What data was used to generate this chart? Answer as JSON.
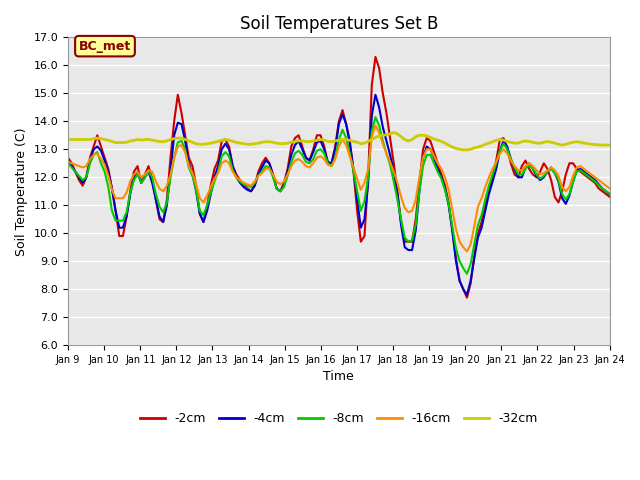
{
  "title": "Soil Temperatures Set B",
  "xlabel": "Time",
  "ylabel": "Soil Temperature (C)",
  "ylim": [
    6.0,
    17.0
  ],
  "yticks": [
    6.0,
    7.0,
    8.0,
    9.0,
    10.0,
    11.0,
    12.0,
    13.0,
    14.0,
    15.0,
    16.0,
    17.0
  ],
  "xtick_labels": [
    "Jan 9",
    "Jan 10",
    "Jan 11",
    "Jan 12",
    "Jan 13",
    "Jan 14",
    "Jan 15",
    "Jan 16",
    "Jan 17",
    "Jan 18",
    "Jan 19",
    "Jan 20",
    "Jan 21",
    "Jan 22",
    "Jan 23",
    "Jan 24"
  ],
  "annotation_text": "BC_met",
  "annotation_color": "#8B0000",
  "annotation_bg": "#FFFF99",
  "annotation_border": "#8B0000",
  "series": {
    "-2cm": {
      "color": "#CC0000",
      "linewidth": 1.5,
      "values": [
        12.7,
        12.5,
        12.2,
        11.9,
        11.7,
        12.0,
        12.7,
        13.1,
        13.5,
        13.1,
        12.7,
        12.3,
        11.6,
        10.8,
        9.9,
        9.9,
        10.6,
        11.5,
        12.2,
        12.4,
        11.8,
        12.1,
        12.4,
        11.9,
        11.2,
        10.5,
        10.4,
        11.2,
        12.7,
        14.0,
        14.95,
        14.3,
        13.5,
        12.7,
        12.4,
        11.7,
        10.7,
        10.4,
        11.0,
        11.7,
        12.3,
        12.6,
        13.3,
        13.35,
        13.1,
        12.4,
        12.1,
        11.9,
        11.7,
        11.6,
        11.5,
        11.7,
        12.2,
        12.5,
        12.7,
        12.5,
        12.1,
        11.6,
        11.5,
        11.8,
        12.3,
        13.1,
        13.4,
        13.5,
        13.1,
        12.7,
        12.6,
        13.0,
        13.5,
        13.5,
        13.1,
        12.5,
        12.5,
        13.1,
        14.0,
        14.4,
        13.9,
        13.3,
        12.2,
        10.8,
        9.7,
        9.9,
        12.0,
        15.3,
        16.3,
        15.9,
        15.0,
        14.3,
        13.4,
        12.5,
        11.5,
        10.4,
        9.7,
        9.7,
        9.7,
        10.5,
        11.8,
        13.0,
        13.4,
        13.3,
        12.9,
        12.5,
        12.1,
        11.7,
        11.1,
        10.1,
        9.1,
        8.3,
        8.0,
        7.7,
        8.2,
        9.2,
        10.0,
        10.4,
        11.0,
        11.6,
        12.0,
        12.6,
        13.35,
        13.4,
        13.0,
        12.5,
        12.1,
        12.0,
        12.4,
        12.6,
        12.3,
        12.1,
        12.0,
        12.2,
        12.5,
        12.3,
        11.9,
        11.3,
        11.1,
        11.5,
        12.1,
        12.5,
        12.5,
        12.3,
        12.2,
        12.1,
        12.0,
        11.9,
        11.8,
        11.6,
        11.5,
        11.4,
        11.3
      ]
    },
    "-4cm": {
      "color": "#0000CC",
      "linewidth": 1.5,
      "values": [
        12.55,
        12.4,
        12.2,
        12.0,
        11.8,
        12.0,
        12.6,
        13.0,
        13.1,
        12.95,
        12.6,
        12.2,
        11.6,
        10.8,
        10.2,
        10.2,
        10.6,
        11.4,
        12.0,
        12.2,
        11.8,
        12.0,
        12.2,
        11.8,
        11.2,
        10.6,
        10.4,
        11.0,
        12.2,
        13.5,
        13.95,
        13.9,
        13.3,
        12.5,
        12.1,
        11.5,
        10.7,
        10.4,
        10.8,
        11.4,
        12.0,
        12.4,
        13.0,
        13.2,
        13.0,
        12.4,
        12.0,
        11.8,
        11.65,
        11.55,
        11.5,
        11.7,
        12.1,
        12.35,
        12.6,
        12.5,
        12.1,
        11.6,
        11.5,
        11.7,
        12.2,
        12.8,
        13.15,
        13.3,
        13.0,
        12.7,
        12.6,
        12.9,
        13.25,
        13.3,
        13.0,
        12.55,
        12.5,
        13.0,
        13.9,
        14.25,
        13.9,
        13.2,
        12.3,
        11.2,
        10.2,
        10.5,
        11.8,
        14.2,
        14.95,
        14.5,
        13.8,
        13.3,
        12.8,
        12.2,
        11.4,
        10.3,
        9.5,
        9.4,
        9.4,
        10.1,
        11.5,
        12.7,
        13.1,
        13.0,
        12.7,
        12.3,
        12.0,
        11.6,
        11.0,
        10.1,
        9.0,
        8.3,
        8.0,
        7.8,
        8.3,
        9.1,
        9.85,
        10.2,
        10.8,
        11.4,
        11.85,
        12.3,
        12.95,
        13.3,
        13.1,
        12.65,
        12.3,
        12.0,
        12.0,
        12.35,
        12.5,
        12.3,
        12.05,
        11.9,
        12.0,
        12.2,
        12.35,
        12.15,
        11.85,
        11.25,
        11.05,
        11.35,
        11.85,
        12.25,
        12.3,
        12.2,
        12.1,
        12.0,
        11.9,
        11.75,
        11.6,
        11.5,
        11.4
      ]
    },
    "-8cm": {
      "color": "#00CC00",
      "linewidth": 1.5,
      "values": [
        12.5,
        12.35,
        12.2,
        12.05,
        11.9,
        12.0,
        12.5,
        12.8,
        12.9,
        12.5,
        12.2,
        11.65,
        10.8,
        10.45,
        10.45,
        10.45,
        10.75,
        11.45,
        11.9,
        12.1,
        11.8,
        12.0,
        12.2,
        12.0,
        11.4,
        10.95,
        10.75,
        11.1,
        12.0,
        12.7,
        13.25,
        13.3,
        13.0,
        12.35,
        12.05,
        11.55,
        10.8,
        10.65,
        11.0,
        11.45,
        11.85,
        12.2,
        12.75,
        12.9,
        12.75,
        12.25,
        12.0,
        11.85,
        11.75,
        11.7,
        11.65,
        11.8,
        12.05,
        12.2,
        12.4,
        12.35,
        12.0,
        11.6,
        11.5,
        11.65,
        12.05,
        12.55,
        12.85,
        12.95,
        12.8,
        12.55,
        12.5,
        12.65,
        12.95,
        13.0,
        12.85,
        12.5,
        12.4,
        12.7,
        13.35,
        13.7,
        13.4,
        12.85,
        12.2,
        11.5,
        10.8,
        11.15,
        12.0,
        13.65,
        14.15,
        13.85,
        13.3,
        12.85,
        12.45,
        11.85,
        11.2,
        10.5,
        9.85,
        9.7,
        9.75,
        10.3,
        11.5,
        12.4,
        12.8,
        12.8,
        12.5,
        12.2,
        11.95,
        11.55,
        11.05,
        10.25,
        9.45,
        9.0,
        8.75,
        8.55,
        8.9,
        9.6,
        10.3,
        10.65,
        11.2,
        11.7,
        12.1,
        12.5,
        12.95,
        13.2,
        13.0,
        12.65,
        12.35,
        12.1,
        12.1,
        12.3,
        12.45,
        12.3,
        12.1,
        11.95,
        12.05,
        12.2,
        12.3,
        12.15,
        11.9,
        11.4,
        11.2,
        11.4,
        11.85,
        12.2,
        12.25,
        12.15,
        12.05,
        11.95,
        11.85,
        11.72,
        11.6,
        11.5,
        11.42
      ]
    },
    "-16cm": {
      "color": "#FF8C00",
      "linewidth": 1.5,
      "values": [
        12.55,
        12.5,
        12.45,
        12.4,
        12.35,
        12.4,
        12.65,
        12.8,
        12.85,
        12.65,
        12.45,
        12.05,
        11.55,
        11.25,
        11.25,
        11.25,
        11.45,
        11.85,
        12.1,
        12.2,
        12.0,
        12.1,
        12.25,
        12.2,
        11.85,
        11.6,
        11.5,
        11.7,
        12.1,
        12.7,
        13.1,
        13.15,
        12.9,
        12.4,
        12.15,
        11.75,
        11.25,
        11.1,
        11.35,
        11.65,
        11.95,
        12.15,
        12.5,
        12.6,
        12.5,
        12.2,
        12.0,
        11.9,
        11.8,
        11.75,
        11.7,
        11.85,
        12.05,
        12.15,
        12.3,
        12.3,
        12.1,
        11.85,
        11.75,
        11.85,
        12.1,
        12.4,
        12.6,
        12.65,
        12.55,
        12.4,
        12.35,
        12.5,
        12.7,
        12.75,
        12.65,
        12.45,
        12.4,
        12.65,
        13.1,
        13.35,
        13.15,
        12.75,
        12.35,
        11.95,
        11.55,
        11.8,
        12.3,
        13.45,
        13.85,
        13.6,
        13.2,
        12.85,
        12.55,
        12.2,
        11.8,
        11.3,
        10.9,
        10.75,
        10.8,
        11.2,
        12.0,
        12.7,
        13.0,
        13.0,
        12.75,
        12.5,
        12.3,
        12.0,
        11.55,
        10.85,
        10.15,
        9.7,
        9.5,
        9.35,
        9.6,
        10.25,
        10.95,
        11.25,
        11.65,
        12.0,
        12.3,
        12.55,
        12.85,
        13.0,
        12.85,
        12.6,
        12.4,
        12.25,
        12.25,
        12.4,
        12.5,
        12.4,
        12.25,
        12.1,
        12.15,
        12.25,
        12.35,
        12.25,
        12.05,
        11.65,
        11.5,
        11.65,
        12.05,
        12.35,
        12.4,
        12.3,
        12.2,
        12.1,
        12.0,
        11.9,
        11.8,
        11.7,
        11.6
      ]
    },
    "-32cm": {
      "color": "#CCCC00",
      "linewidth": 2.0,
      "values": [
        13.35,
        13.35,
        13.35,
        13.35,
        13.35,
        13.35,
        13.35,
        13.38,
        13.4,
        13.38,
        13.35,
        13.32,
        13.28,
        13.24,
        13.24,
        13.24,
        13.25,
        13.3,
        13.32,
        13.35,
        13.33,
        13.35,
        13.35,
        13.33,
        13.3,
        13.28,
        13.27,
        13.3,
        13.35,
        13.38,
        13.4,
        13.4,
        13.35,
        13.3,
        13.25,
        13.2,
        13.18,
        13.18,
        13.2,
        13.22,
        13.25,
        13.28,
        13.32,
        13.35,
        13.33,
        13.28,
        13.25,
        13.22,
        13.2,
        13.18,
        13.18,
        13.2,
        13.22,
        13.25,
        13.27,
        13.27,
        13.25,
        13.22,
        13.2,
        13.2,
        13.22,
        13.25,
        13.28,
        13.3,
        13.3,
        13.28,
        13.27,
        13.3,
        13.32,
        13.35,
        13.33,
        13.28,
        13.27,
        13.3,
        13.33,
        13.35,
        13.35,
        13.32,
        13.28,
        13.25,
        13.2,
        13.22,
        13.28,
        13.35,
        13.42,
        13.48,
        13.5,
        13.52,
        13.55,
        13.6,
        13.55,
        13.45,
        13.35,
        13.3,
        13.35,
        13.45,
        13.5,
        13.5,
        13.48,
        13.42,
        13.37,
        13.33,
        13.28,
        13.22,
        13.15,
        13.08,
        13.03,
        13.0,
        12.98,
        12.98,
        13.0,
        13.05,
        13.08,
        13.12,
        13.18,
        13.22,
        13.27,
        13.32,
        13.35,
        13.33,
        13.28,
        13.25,
        13.22,
        13.22,
        13.27,
        13.3,
        13.28,
        13.25,
        13.22,
        13.22,
        13.25,
        13.28,
        13.25,
        13.22,
        13.18,
        13.15,
        13.18,
        13.22,
        13.25,
        13.27,
        13.25,
        13.22,
        13.2,
        13.18,
        13.17,
        13.16,
        13.15,
        13.15,
        13.15
      ]
    }
  },
  "background_color": "#E8E8E8",
  "plot_bg_color": "#E8E8E8",
  "grid_color": "white",
  "legend_items": [
    "-2cm",
    "-4cm",
    "-8cm",
    "-16cm",
    "-32cm"
  ],
  "legend_colors": [
    "#CC0000",
    "#0000CC",
    "#00CC00",
    "#FF8C00",
    "#CCCC00"
  ]
}
